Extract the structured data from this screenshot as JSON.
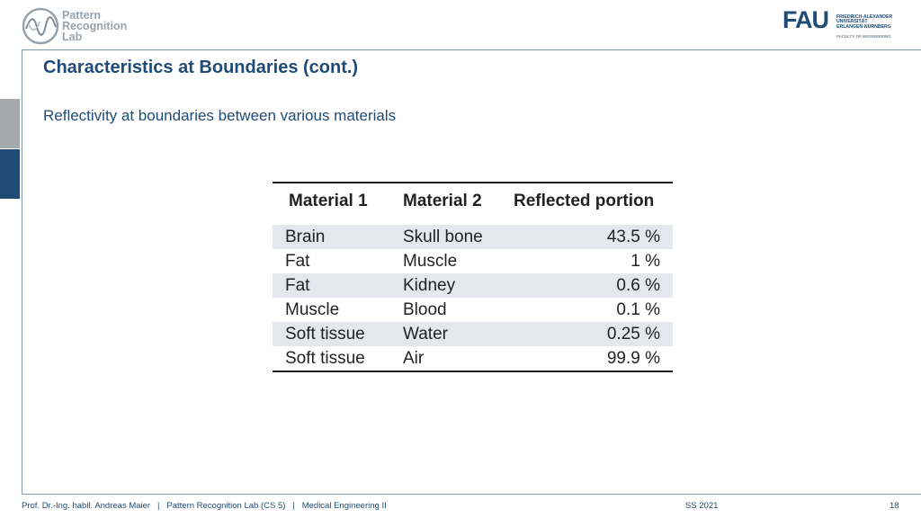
{
  "header": {
    "lab_logo_lines": [
      "Pattern",
      "Recognition",
      "Lab"
    ],
    "fau_logo": {
      "word": "FAU",
      "lines": [
        "FRIEDRICH-ALEXANDER",
        "UNIVERSITÄT",
        "ERLANGEN-NÜRNBERG"
      ],
      "faculty": "FACULTY OF ENGINEERING"
    }
  },
  "slide": {
    "title": "Characteristics at Boundaries (cont.)",
    "subtitle": "Reflectivity at boundaries between various materials"
  },
  "table": {
    "headers": [
      "Material 1",
      "Material 2",
      "Reflected portion"
    ],
    "rows": [
      [
        "Brain",
        "Skull bone",
        "43.5 %"
      ],
      [
        "Fat",
        "Muscle",
        "1 %"
      ],
      [
        "Fat",
        "Kidney",
        "0.6 %"
      ],
      [
        "Muscle",
        "Blood",
        "0.1 %"
      ],
      [
        "Soft tissue",
        "Water",
        "0.25 %"
      ],
      [
        "Soft tissue",
        "Air",
        "99.9 %"
      ]
    ]
  },
  "footer": {
    "left": "Prof. Dr.-Ing. habil. Andreas Maier   |   Pattern Recognition Lab (CS 5)   |   Medical Engineering II",
    "semester": "SS 2021",
    "page": "18"
  },
  "colors": {
    "accent": "#1f4b76",
    "gray_block": "#a6a9ac",
    "row_shade": "#e4e7ee"
  }
}
